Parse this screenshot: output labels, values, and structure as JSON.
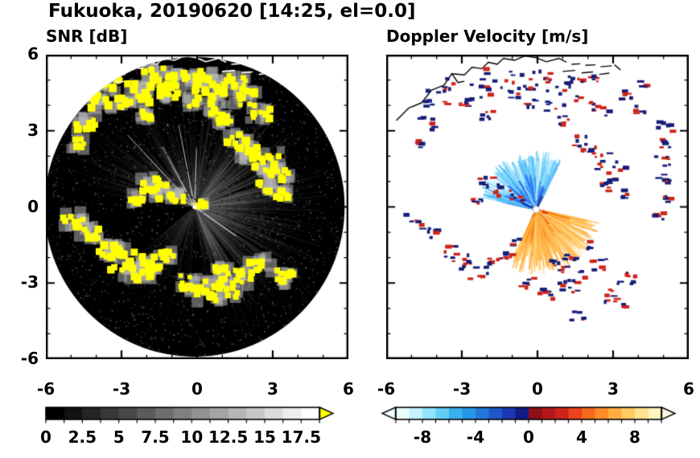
{
  "title": "Fukuoka, 20190620 [14:25, el=0.0]",
  "panels": {
    "snr": {
      "title": "SNR [dB]"
    },
    "doppler": {
      "title": "Doppler Velocity [m/s]"
    }
  },
  "chart_data": [
    {
      "type": "heatmap",
      "subtype": "radar_ppi_scan",
      "id": "snr",
      "title": "SNR [dB]",
      "xlim": [
        -6,
        6
      ],
      "ylim": [
        -6,
        6
      ],
      "x_tick_values": [
        -6,
        -3,
        0,
        3,
        6
      ],
      "x_tick_labels": [
        "-6",
        "-3",
        "0",
        "3",
        "6"
      ],
      "y_tick_values": [
        6,
        3,
        0,
        -3,
        -6
      ],
      "y_tick_labels": [
        "6",
        "3",
        "0",
        "-3",
        "-6"
      ],
      "minor_tick_step": 1,
      "scan": {
        "center": [
          -0.1,
          0.0
        ],
        "radius": 5.95,
        "background_color": "#000000"
      },
      "texture_fans": [
        {
          "a0": -75,
          "a1": 58,
          "n": 420,
          "g0": 40,
          "g1": 140
        },
        {
          "a0": 95,
          "a1": 172,
          "n": 170,
          "g0": 35,
          "g1": 110
        },
        {
          "a0": 58,
          "a1": 95,
          "n": 70,
          "g0": 30,
          "g1": 85
        },
        {
          "a0": -140,
          "a1": -75,
          "n": 60,
          "g0": 25,
          "g1": 70
        }
      ],
      "bright_rays": [
        {
          "angle": 88,
          "len": 2.3
        },
        {
          "angle": 101,
          "len": 3.3
        },
        {
          "angle": 118,
          "len": 2.7
        },
        {
          "angle": 133,
          "len": 3.9
        },
        {
          "angle": 150,
          "len": 2.2
        },
        {
          "angle": -35,
          "len": 2.0
        }
      ],
      "echo_color": "#ffff00",
      "echo_fringe_color": "#b9b9b9",
      "colorbar": {
        "orientation": "horizontal",
        "range": [
          0,
          18.75
        ],
        "n_segments": 15,
        "cmap": "grayscale",
        "start_color": "#000000",
        "end_color": "#ffffff",
        "over_arrow_color": "#ffff00",
        "tick_label_values": [
          0,
          2.5,
          5,
          7.5,
          10,
          12.5,
          15,
          17.5
        ],
        "tick_labels": [
          "0",
          "2.5",
          "5",
          "7.5",
          "10",
          "12.5",
          "15",
          "17.5"
        ]
      }
    },
    {
      "type": "heatmap",
      "subtype": "radar_ppi_scan",
      "id": "doppler",
      "title": "Doppler Velocity [m/s]",
      "xlim": [
        -6,
        6
      ],
      "ylim": [
        -6,
        6
      ],
      "x_tick_values": [
        -6,
        -3,
        0,
        3,
        6
      ],
      "x_tick_labels": [
        "-6",
        "-3",
        "0",
        "3",
        "6"
      ],
      "y_tick_values": [
        6,
        3,
        0,
        -3,
        -6
      ],
      "y_tick_labels": [],
      "minor_tick_step": 1,
      "fan_origin": [
        -0.05,
        -0.1
      ],
      "fans": [
        {
          "name": "toward-blue",
          "a0": 62,
          "a1": 168,
          "n": 560,
          "r_max": 2.35,
          "near": [
            "#0d1f8f",
            "#1433b5",
            "#1d49d2"
          ],
          "mid": [
            "#2a6cf0",
            "#2f7ff5",
            "#1a5ce0"
          ],
          "far": [
            "#54bdf7",
            "#7fd6fb",
            "#a9e7fd"
          ],
          "thresholds": [
            0.85,
            1.45
          ]
        },
        {
          "name": "away-orange",
          "a0": -116,
          "a1": -12,
          "n": 560,
          "r_max": 2.6,
          "near": [
            "#d63a0e",
            "#ef5a0c",
            "#f26b0b"
          ],
          "mid": [
            "#fb8c0f",
            "#ff9e2a",
            "#f77b12"
          ],
          "far": [
            "#ffc35c",
            "#ffd57f",
            "#ffb347"
          ],
          "thresholds": [
            0.8,
            1.45
          ]
        }
      ],
      "speck_colors": [
        "#161e78",
        "#d02318"
      ],
      "colorbar": {
        "orientation": "horizontal",
        "range": [
          -10,
          10
        ],
        "n_segments": 20,
        "segment_colors": [
          "#e8feff",
          "#c2f3fe",
          "#93e3fb",
          "#63cdf7",
          "#3bb0ef",
          "#2696e6",
          "#2277d8",
          "#1f57c8",
          "#1a39b2",
          "#121c85",
          "#8c1016",
          "#b2181a",
          "#d02318",
          "#eb431c",
          "#f56a1e",
          "#fb8c28",
          "#ffad42",
          "#ffcb66",
          "#ffe38e",
          "#fff5bd"
        ],
        "under_arrow_color": "#f0ffff",
        "over_arrow_color": "#fffce2",
        "tick_label_values": [
          -8,
          -4,
          0,
          4,
          8
        ],
        "tick_labels": [
          "-8",
          "-4",
          "0",
          "4",
          "8"
        ]
      }
    }
  ],
  "coastline": {
    "color_on_snr": "#ffffff",
    "color_on_doppler": "#000000",
    "main": [
      [
        -5.6,
        3.4
      ],
      [
        -5.1,
        3.9
      ],
      [
        -4.6,
        4.1
      ],
      [
        -4.2,
        4.6
      ],
      [
        -3.7,
        4.8
      ],
      [
        -3.4,
        5.25
      ],
      [
        -2.9,
        5.2
      ],
      [
        -2.6,
        5.5
      ],
      [
        -2.2,
        5.45
      ],
      [
        -1.95,
        5.7
      ],
      [
        -1.6,
        5.62
      ],
      [
        -1.35,
        5.85
      ],
      [
        -0.9,
        5.78
      ],
      [
        -0.5,
        5.95
      ],
      [
        -0.05,
        5.88
      ],
      [
        0.35,
        5.72
      ],
      [
        0.85,
        5.85
      ],
      [
        1.15,
        5.7
      ]
    ],
    "spur": [
      [
        -3.4,
        5.25
      ],
      [
        -3.15,
        4.9
      ],
      [
        -2.9,
        4.95
      ]
    ],
    "breakwaters": [
      [
        [
          1.35,
          5.62
        ],
        [
          1.7,
          5.64
        ]
      ],
      [
        [
          1.9,
          5.58
        ],
        [
          2.3,
          5.6
        ]
      ],
      [
        [
          2.5,
          5.52
        ],
        [
          2.95,
          5.56
        ]
      ],
      [
        [
          1.0,
          5.34
        ],
        [
          1.5,
          5.38
        ]
      ],
      [
        [
          1.75,
          5.28
        ],
        [
          2.2,
          5.32
        ]
      ],
      [
        [
          2.45,
          5.22
        ],
        [
          2.85,
          5.27
        ]
      ],
      [
        [
          3.05,
          5.6
        ],
        [
          3.3,
          5.4
        ]
      ]
    ]
  },
  "echo_fields": [
    "x",
    "y",
    "size",
    "panel(b=both,s=snr-only,d=doppler-only)"
  ],
  "echoes": [
    [
      -4.0,
      4.3,
      2,
      "b"
    ],
    [
      -3.4,
      4.8,
      1.5,
      "b"
    ],
    [
      -2.9,
      4.1,
      1,
      "b"
    ],
    [
      -2.3,
      4.5,
      2,
      "b"
    ],
    [
      -1.6,
      5.0,
      2.5,
      "b"
    ],
    [
      -1.1,
      4.5,
      1.5,
      "b"
    ],
    [
      -0.5,
      4.9,
      2,
      "b"
    ],
    [
      0.2,
      5.1,
      1.5,
      "b"
    ],
    [
      0.8,
      4.7,
      2,
      "b"
    ],
    [
      1.5,
      4.9,
      1.5,
      "b"
    ],
    [
      -0.2,
      4.1,
      1,
      "b"
    ],
    [
      0.7,
      3.9,
      1.5,
      "b"
    ],
    [
      1.9,
      4.3,
      1.5,
      "b"
    ],
    [
      2.5,
      3.7,
      1.5,
      "b"
    ],
    [
      1.1,
      3.4,
      1,
      "b"
    ],
    [
      -2.0,
      3.6,
      1,
      "b"
    ],
    [
      -4.4,
      3.3,
      1.5,
      "b"
    ],
    [
      -4.7,
      2.5,
      1,
      "b"
    ],
    [
      1.6,
      2.6,
      1.5,
      "b"
    ],
    [
      2.1,
      2.1,
      1.5,
      "b"
    ],
    [
      2.8,
      1.8,
      2,
      "b"
    ],
    [
      3.2,
      1.3,
      1.5,
      "b"
    ],
    [
      2.7,
      0.8,
      1,
      "b"
    ],
    [
      3.4,
      0.5,
      1,
      "b"
    ],
    [
      -1.9,
      0.9,
      1.5,
      "b"
    ],
    [
      -1.3,
      0.6,
      1.5,
      "b"
    ],
    [
      -0.8,
      0.4,
      1,
      "b"
    ],
    [
      -2.4,
      0.3,
      1,
      "b"
    ],
    [
      -4.9,
      -0.5,
      1.5,
      "b"
    ],
    [
      -4.3,
      -1.0,
      1.5,
      "b"
    ],
    [
      -3.5,
      -1.7,
      1.5,
      "b"
    ],
    [
      -3.0,
      -2.1,
      2,
      "b"
    ],
    [
      -2.4,
      -2.5,
      2,
      "b"
    ],
    [
      -1.8,
      -2.2,
      1.5,
      "b"
    ],
    [
      -1.2,
      -1.9,
      1,
      "b"
    ],
    [
      -0.3,
      -3.0,
      1.5,
      "b"
    ],
    [
      0.4,
      -3.3,
      2,
      "b"
    ],
    [
      1.1,
      -3.2,
      2,
      "b"
    ],
    [
      1.8,
      -2.8,
      1.5,
      "b"
    ],
    [
      1.0,
      -2.5,
      1,
      "b"
    ],
    [
      2.5,
      -2.3,
      1.5,
      "b"
    ],
    [
      3.5,
      -2.8,
      1.5,
      "b"
    ],
    [
      5.0,
      3.2,
      1.5,
      "d"
    ],
    [
      5.1,
      2.5,
      1,
      "d"
    ],
    [
      4.9,
      1.8,
      1.5,
      "d"
    ],
    [
      5.0,
      1.1,
      1,
      "d"
    ],
    [
      5.1,
      0.3,
      1,
      "d"
    ],
    [
      4.9,
      -0.4,
      1,
      "d"
    ],
    [
      3.5,
      4.4,
      1,
      "d"
    ],
    [
      4.2,
      4.8,
      1,
      "d"
    ],
    [
      2.2,
      5.1,
      1,
      "d"
    ],
    [
      4.1,
      3.8,
      1,
      "d"
    ],
    [
      2.9,
      -3.5,
      1.5,
      "d"
    ],
    [
      3.4,
      -3.8,
      1,
      "d"
    ],
    [
      1.6,
      -4.3,
      1,
      "d"
    ],
    [
      1.3,
      -1.9,
      1,
      "d"
    ],
    [
      0.6,
      -2.2,
      1,
      "d"
    ],
    [
      2.0,
      -1.5,
      1,
      "d"
    ],
    [
      -0.9,
      -1.4,
      0.8,
      "d"
    ],
    [
      0.15,
      0.15,
      0.6,
      "s"
    ]
  ]
}
